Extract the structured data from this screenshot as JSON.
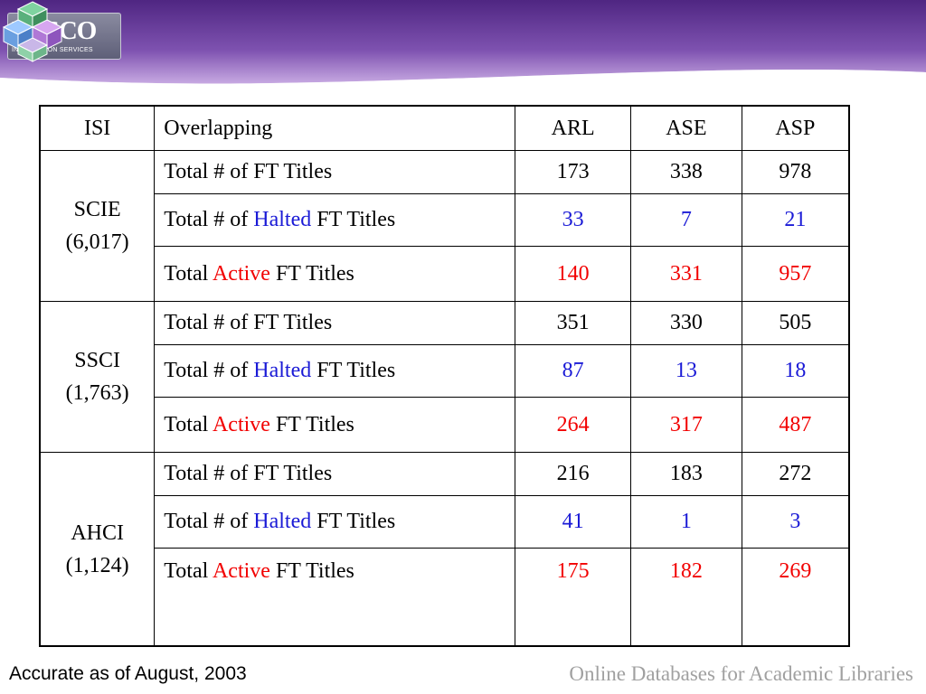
{
  "header": {
    "logo_text": "EBSCO",
    "logo_subtext": "INFORMATION SERVICES",
    "colors": {
      "band_dark": "#5c2e8c",
      "band_light": "#b48fd6"
    }
  },
  "table": {
    "columns": [
      "ISI",
      "Overlapping",
      "ARL",
      "ASE",
      "ASP"
    ],
    "groups": [
      {
        "name": "SCIE",
        "count": "(6,017)",
        "rows": [
          {
            "prefix": "Total # of FT Titles",
            "highlight": "",
            "suffix": "",
            "values": [
              "173",
              "338",
              "978"
            ],
            "color": "black"
          },
          {
            "prefix": "Total # of ",
            "highlight": "Halted",
            "suffix": " FT Titles",
            "values": [
              "33",
              "7",
              "21"
            ],
            "color": "blue"
          },
          {
            "prefix": "Total ",
            "highlight": "Active",
            "suffix": " FT Titles",
            "values": [
              "140",
              "331",
              "957"
            ],
            "color": "red"
          }
        ]
      },
      {
        "name": "SSCI",
        "count": "(1,763)",
        "rows": [
          {
            "prefix": "Total # of FT Titles",
            "highlight": "",
            "suffix": "",
            "values": [
              "351",
              "330",
              "505"
            ],
            "color": "black"
          },
          {
            "prefix": "Total # of ",
            "highlight": "Halted",
            "suffix": " FT Titles",
            "values": [
              "87",
              "13",
              "18"
            ],
            "color": "blue"
          },
          {
            "prefix": "Total ",
            "highlight": "Active",
            "suffix": " FT Titles",
            "values": [
              "264",
              "317",
              "487"
            ],
            "color": "red"
          }
        ]
      },
      {
        "name": "AHCI",
        "count": "(1,124)",
        "rows": [
          {
            "prefix": "Total # of FT Titles",
            "highlight": "",
            "suffix": "",
            "values": [
              "216",
              "183",
              "272"
            ],
            "color": "black"
          },
          {
            "prefix": "Total # of ",
            "highlight": "Halted",
            "suffix": " FT Titles",
            "values": [
              "41",
              "1",
              "3"
            ],
            "color": "blue"
          },
          {
            "prefix": "Total ",
            "highlight": "Active",
            "suffix": " FT Titles",
            "values": [
              "175",
              "182",
              "269"
            ],
            "color": "red"
          }
        ]
      }
    ],
    "colors": {
      "blue": "#1a1ad6",
      "red": "#f20000"
    }
  },
  "footer": {
    "left_text": "Accurate as of August, 2003",
    "right_text": "Online Databases for Academic Libraries"
  }
}
